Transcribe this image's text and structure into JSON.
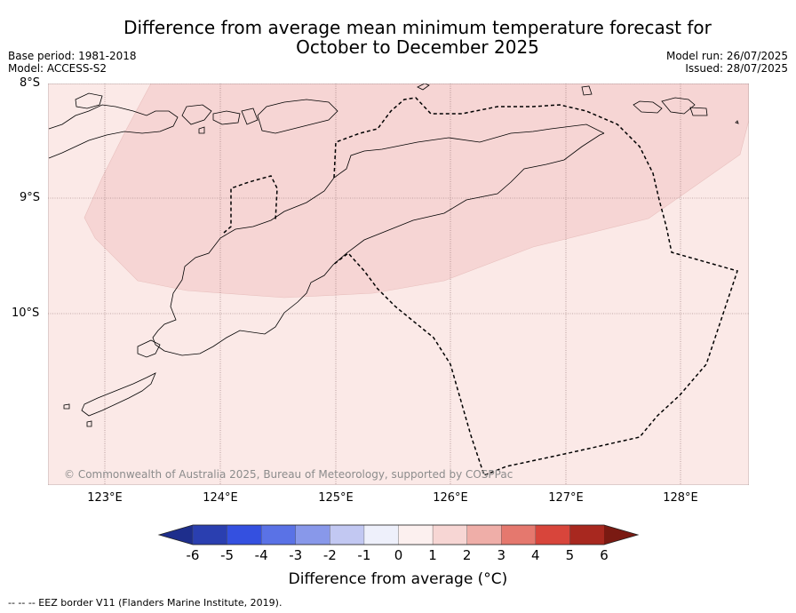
{
  "title_line1": "Difference from average mean minimum temperature forecast for",
  "title_line2": "October to December 2025",
  "base_period": "Base period: 1981-2018",
  "model": "Model: ACCESS-S2",
  "model_run": "Model run: 26/07/2025",
  "issued": "Issued: 28/07/2025",
  "map": {
    "lat_labels": [
      "8°S",
      "9°S",
      "10°S"
    ],
    "lon_labels": [
      "123°E",
      "124°E",
      "125°E",
      "126°E",
      "127°E",
      "128°E"
    ],
    "copyright": "© Commonwealth of Australia 2025, Bureau of Meteorology, supported by COSPPac",
    "colors": {
      "background_anomaly": "#fbe9e7",
      "higher_anomaly": "#f6d5d4",
      "coastline": "#000000",
      "eez_border": "#000000"
    }
  },
  "colorbar": {
    "ticks": [
      "-6",
      "-5",
      "-4",
      "-3",
      "-2",
      "-1",
      "0",
      "1",
      "2",
      "3",
      "4",
      "5",
      "6"
    ],
    "colors": [
      "#1e2e8c",
      "#2a3fb0",
      "#3450e0",
      "#5a72e6",
      "#8898ea",
      "#c2c8f2",
      "#eef0fb",
      "#fcf0ef",
      "#f7d6d4",
      "#efaea8",
      "#e5786e",
      "#d8453b",
      "#a8281f",
      "#7a1a12"
    ],
    "label": "Difference from average ($^\\circ$C)",
    "label_display": "Difference from average (°C)"
  },
  "footnote": "-- -- -- EEZ border V11 (Flanders Marine Institute, 2019)."
}
